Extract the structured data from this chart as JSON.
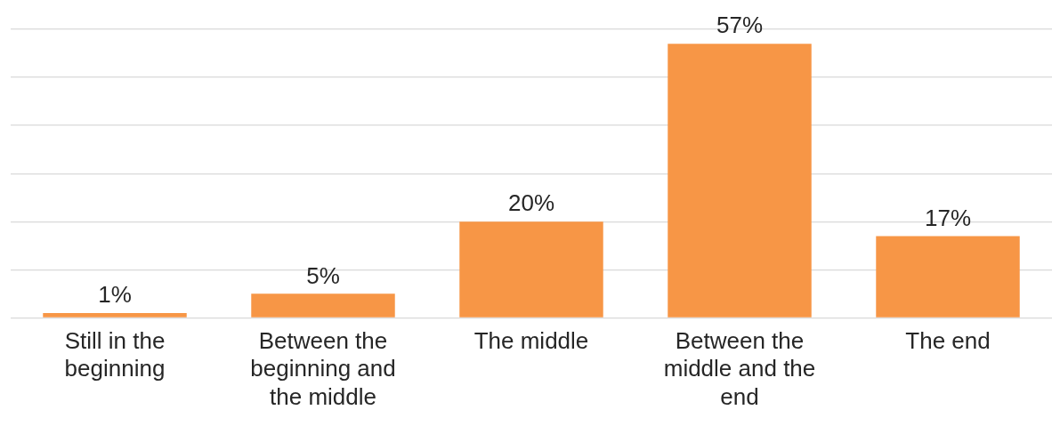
{
  "chart_data": {
    "type": "bar",
    "categories": [
      "Still in the beginning",
      "Between the beginning and the middle",
      "The middle",
      "Between the middle and the end",
      "The end"
    ],
    "values": [
      1,
      5,
      20,
      57,
      17
    ],
    "value_labels": [
      "1%",
      "5%",
      "20%",
      "57%",
      "17%"
    ],
    "color": "#f79646",
    "ylim": [
      0,
      60
    ],
    "grid": "y",
    "tick_labels": "x",
    "legend": false
  }
}
